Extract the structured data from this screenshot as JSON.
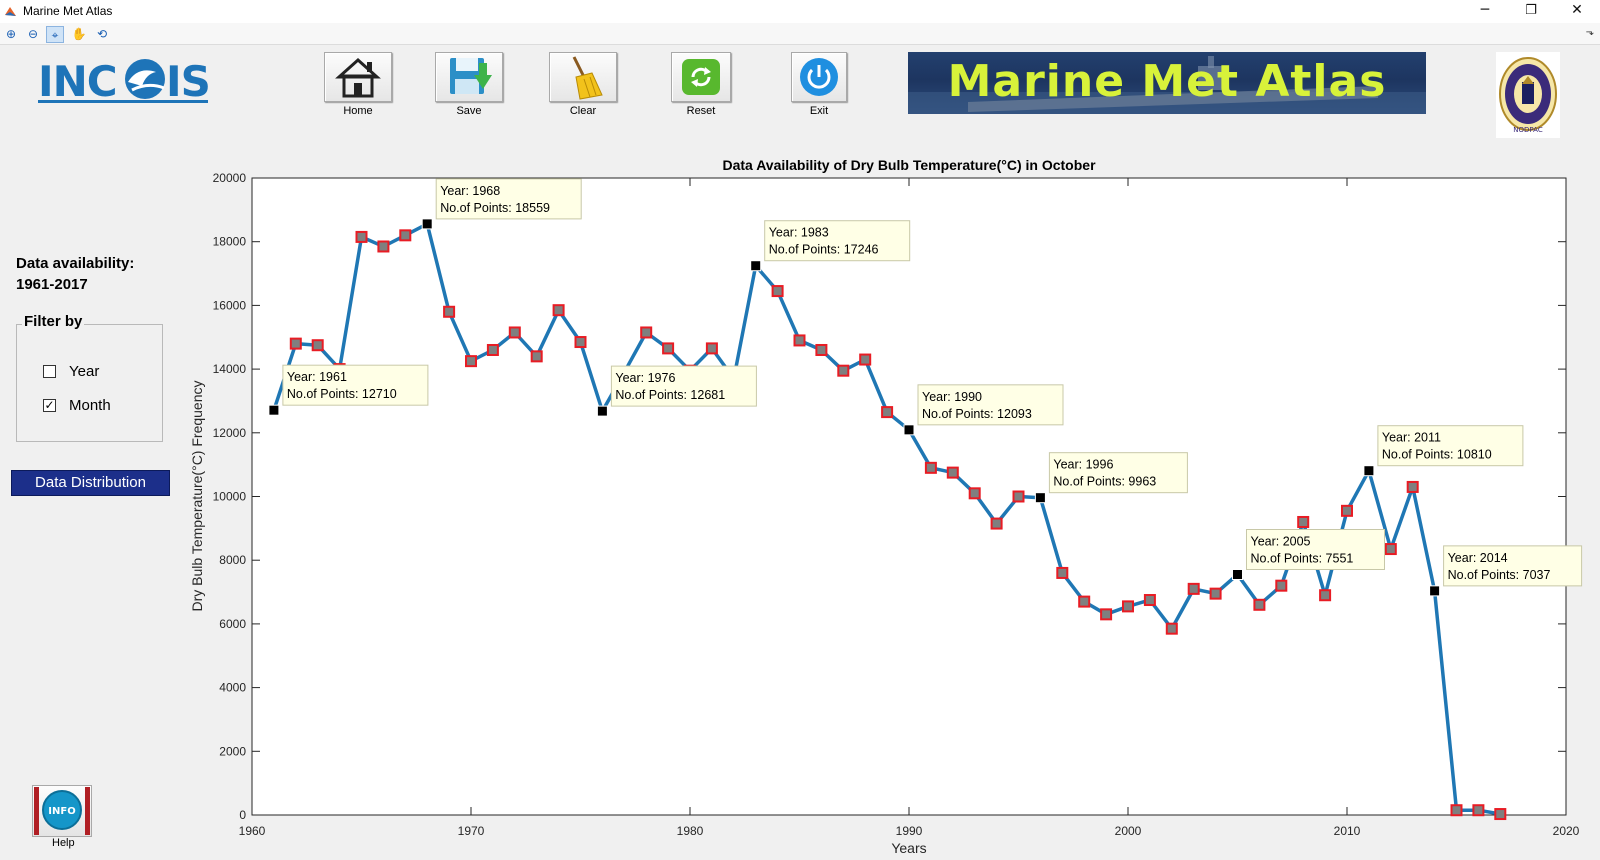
{
  "window": {
    "title": "Marine Met Atlas",
    "minimize_glyph": "─",
    "maximize_glyph": "❐",
    "close_glyph": "✕"
  },
  "figure_toolbar": {
    "tools": [
      {
        "name": "zoom-in-icon",
        "glyph": "⊕"
      },
      {
        "name": "zoom-out-icon",
        "glyph": "⊖"
      },
      {
        "name": "data-cursor-icon",
        "glyph": "⌖"
      },
      {
        "name": "pan-hand-icon",
        "glyph": "✋"
      },
      {
        "name": "rotate-3d-icon",
        "glyph": "⟲"
      }
    ],
    "expand_glyph": "⬎"
  },
  "header": {
    "logo_text": "INCOIS",
    "banner_text": "Marine Met Atlas",
    "emblem_text": "NODPAC"
  },
  "toolbar": {
    "home_label": "Home",
    "save_label": "Save",
    "clear_label": "Clear",
    "reset_label": "Reset",
    "exit_label": "Exit"
  },
  "sidebar": {
    "availability_title": "Data availability:",
    "availability_range": "1961-2017",
    "filter_title": "Filter by",
    "filters": [
      {
        "label": "Year",
        "checked": false
      },
      {
        "label": "Month",
        "checked": true
      }
    ],
    "check_glyph": "✓",
    "distribution_button": "Data Distribution",
    "help_icon_text": "INFO",
    "help_label": "Help"
  },
  "colors": {
    "line": "#1f77b4",
    "marker_edge": "#e81c24",
    "marker_fill": "#7f7f7f",
    "highlight_marker": "#000000",
    "tooltip_bg": "#ffffe6"
  },
  "chart_data": {
    "type": "line",
    "title": "Data Availability of Dry Bulb Temperature(°C) in October",
    "xlabel": "Years",
    "ylabel": "Dry Bulb Temperature(°C) Frequency",
    "xlim": [
      1960,
      2020
    ],
    "ylim": [
      0,
      20000
    ],
    "xticks": [
      1960,
      1970,
      1980,
      1990,
      2000,
      2010,
      2020
    ],
    "yticks": [
      0,
      2000,
      4000,
      6000,
      8000,
      10000,
      12000,
      14000,
      16000,
      18000,
      20000
    ],
    "grid": false,
    "series": [
      {
        "x": [
          1961,
          1962,
          1963,
          1964,
          1965,
          1966,
          1967,
          1968,
          1969,
          1970,
          1971,
          1972,
          1973,
          1974,
          1975,
          1976,
          1977,
          1978,
          1979,
          1980,
          1981,
          1982,
          1983,
          1984,
          1985,
          1986,
          1987,
          1988,
          1989,
          1990,
          1991,
          1992,
          1993,
          1994,
          1995,
          1996,
          1997,
          1998,
          1999,
          2000,
          2001,
          2002,
          2003,
          2004,
          2005,
          2006,
          2007,
          2008,
          2009,
          2010,
          2011,
          2012,
          2013,
          2014,
          2015,
          2016,
          2017
        ],
        "y": [
          12710,
          14800,
          14750,
          14000,
          18150,
          17850,
          18200,
          18559,
          15800,
          14250,
          14600,
          15150,
          14400,
          15850,
          14850,
          12681,
          13900,
          15150,
          14650,
          13950,
          14650,
          13700,
          17246,
          16450,
          14900,
          14600,
          13950,
          14300,
          12650,
          12093,
          10900,
          10750,
          10100,
          9150,
          10000,
          9963,
          7600,
          6700,
          6300,
          6550,
          6750,
          5850,
          7100,
          6950,
          7551,
          6600,
          7200,
          9200,
          6900,
          9550,
          10810,
          8350,
          10300,
          7037,
          150,
          150,
          30
        ]
      }
    ],
    "annotations": [
      {
        "year": 1961,
        "value": 12710,
        "line1": "Year: 1961",
        "line2": "No.of Points: 12710"
      },
      {
        "year": 1968,
        "value": 18559,
        "line1": "Year: 1968",
        "line2": "No.of Points: 18559"
      },
      {
        "year": 1976,
        "value": 12681,
        "line1": "Year: 1976",
        "line2": "No.of Points: 12681"
      },
      {
        "year": 1983,
        "value": 17246,
        "line1": "Year: 1983",
        "line2": "No.of Points: 17246"
      },
      {
        "year": 1990,
        "value": 12093,
        "line1": "Year: 1990",
        "line2": "No.of Points: 12093"
      },
      {
        "year": 1996,
        "value": 9963,
        "line1": "Year: 1996",
        "line2": "No.of Points: 9963"
      },
      {
        "year": 2005,
        "value": 7551,
        "line1": "Year: 2005",
        "line2": "No.of Points: 7551"
      },
      {
        "year": 2011,
        "value": 10810,
        "line1": "Year: 2011",
        "line2": "No.of Points: 10810"
      },
      {
        "year": 2014,
        "value": 7037,
        "line1": "Year: 2014",
        "line2": "No.of Points: 7037"
      }
    ]
  }
}
